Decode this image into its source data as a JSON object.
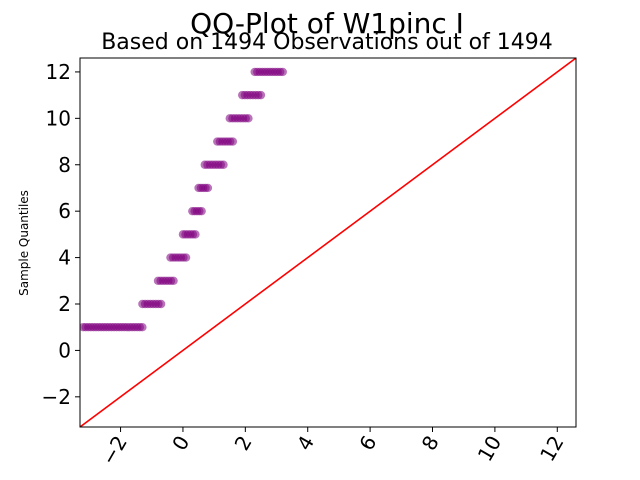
{
  "chart_data": {
    "type": "scatter",
    "title": "QQ-Plot of W1pinc I",
    "subtitle": "Based on 1494 Observations out of 1494",
    "xlabel": "",
    "ylabel": "Sample Quantiles",
    "xlim": [
      -3.3,
      12.6
    ],
    "ylim": [
      -3.3,
      12.6
    ],
    "xticks": [
      -2,
      0,
      2,
      4,
      6,
      8,
      10,
      12
    ],
    "yticks": [
      -2,
      0,
      2,
      4,
      6,
      8,
      10,
      12
    ],
    "x_tick_labels": [
      "−2",
      "0",
      "2",
      "4",
      "6",
      "8",
      "10",
      "12"
    ],
    "y_tick_labels": [
      "−2",
      "0",
      "2",
      "4",
      "6",
      "8",
      "10",
      "12"
    ],
    "grid": false,
    "legend": "none",
    "point_color": "#800080",
    "reference_line_color": "#ff0000",
    "reference_line": {
      "from": [
        -3.3,
        -3.3
      ],
      "to": [
        12.6,
        12.6
      ]
    },
    "series": [
      {
        "name": "",
        "clusters": [
          {
            "y": 1,
            "x_start": -3.2,
            "x_end": -1.3
          },
          {
            "y": 2,
            "x_start": -1.3,
            "x_end": -0.7
          },
          {
            "y": 3,
            "x_start": -0.8,
            "x_end": -0.3
          },
          {
            "y": 4,
            "x_start": -0.4,
            "x_end": 0.1
          },
          {
            "y": 5,
            "x_start": 0.0,
            "x_end": 0.4
          },
          {
            "y": 6,
            "x_start": 0.3,
            "x_end": 0.6
          },
          {
            "y": 7,
            "x_start": 0.5,
            "x_end": 0.8
          },
          {
            "y": 8,
            "x_start": 0.7,
            "x_end": 1.3
          },
          {
            "y": 9,
            "x_start": 1.1,
            "x_end": 1.6
          },
          {
            "y": 10,
            "x_start": 1.5,
            "x_end": 2.1
          },
          {
            "y": 11,
            "x_start": 1.9,
            "x_end": 2.5
          },
          {
            "y": 12,
            "x_start": 2.3,
            "x_end": 3.2
          }
        ]
      }
    ]
  }
}
